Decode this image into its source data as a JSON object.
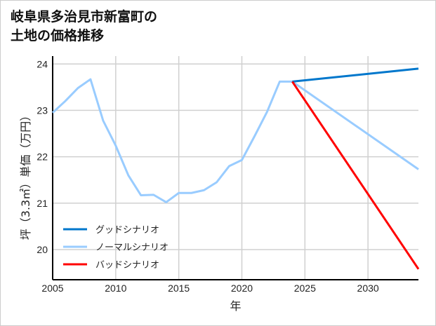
{
  "title": {
    "line1": "岐阜県多治見市新富町の",
    "line2": "土地の価格推移"
  },
  "chart_data": {
    "type": "line",
    "title": "岐阜県多治見市新富町の土地の価格推移",
    "xlabel": "年",
    "ylabel": "坪（3.3㎡）単価（万円）",
    "xlim": [
      2005,
      2034
    ],
    "ylim": [
      19.35,
      24.17
    ],
    "xticks": [
      "2005",
      "2010",
      "2015",
      "2020",
      "2025",
      "2030"
    ],
    "yticks": [
      "20",
      "21",
      "22",
      "23",
      "24"
    ],
    "grid": true,
    "legend_position": "bottom-left",
    "series": [
      {
        "name": "グッドシナリオ",
        "color": "#0077cc",
        "x": [
          2024,
          2034
        ],
        "y": [
          23.62,
          23.9
        ]
      },
      {
        "name": "ノーマルシナリオ",
        "color": "#99ccff",
        "x": [
          2005,
          2006,
          2007,
          2008,
          2009,
          2010,
          2011,
          2012,
          2013,
          2014,
          2015,
          2016,
          2017,
          2018,
          2019,
          2020,
          2021,
          2022,
          2023,
          2024,
          2034
        ],
        "y": [
          22.95,
          23.2,
          23.48,
          23.67,
          22.78,
          22.24,
          21.6,
          21.17,
          21.18,
          21.02,
          21.22,
          21.22,
          21.28,
          21.45,
          21.8,
          21.93,
          22.44,
          22.97,
          23.62,
          23.62,
          21.73
        ]
      },
      {
        "name": "バッドシナリオ",
        "color": "#ff0000",
        "x": [
          2024,
          2034
        ],
        "y": [
          23.62,
          19.58
        ]
      }
    ]
  }
}
